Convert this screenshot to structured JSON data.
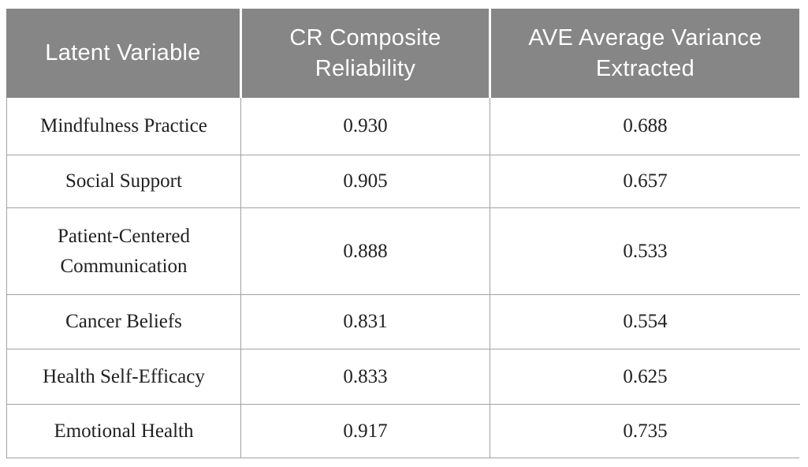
{
  "table": {
    "columns": [
      {
        "label": "Latent Variable"
      },
      {
        "label": "CR Composite Reliability"
      },
      {
        "label": "AVE Average Variance Extracted"
      }
    ],
    "rows": [
      {
        "variable": "Mindfulness Practice",
        "cr": "0.930",
        "ave": "0.688"
      },
      {
        "variable": "Social Support",
        "cr": "0.905",
        "ave": "0.657"
      },
      {
        "variable": "Patient-Centered Communication",
        "cr": "0.888",
        "ave": "0.533"
      },
      {
        "variable": "Cancer Beliefs",
        "cr": "0.831",
        "ave": "0.554"
      },
      {
        "variable": "Health Self-Efficacy",
        "cr": "0.833",
        "ave": "0.625"
      },
      {
        "variable": "Emotional Health",
        "cr": "0.917",
        "ave": "0.735"
      }
    ],
    "colors": {
      "header_background": "#868686",
      "header_text": "#ffffff",
      "body_text": "#212121",
      "grid_line": "#a2a2a2",
      "page_background": "#ffffff"
    }
  }
}
